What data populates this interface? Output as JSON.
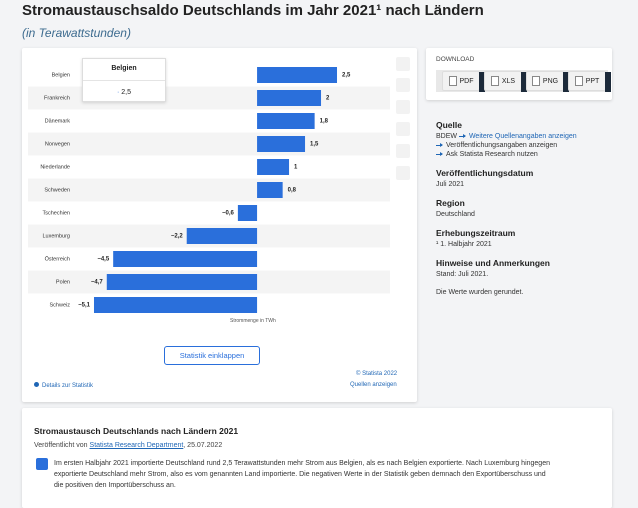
{
  "header": {
    "title": "Stromaustauschsaldo Deutschlands im Jahr 2021¹ nach Ländern",
    "subtitle": "(in Terawattstunden)"
  },
  "chart_data": {
    "type": "hbar",
    "categories": [
      "Belgien",
      "Frankreich",
      "Dänemark",
      "Norwegen",
      "Niederlande",
      "Schweden",
      "Tschechien",
      "Luxemburg",
      "Österreich",
      "Polen",
      "Schweiz"
    ],
    "values": [
      2.5,
      2,
      1.8,
      1.5,
      1,
      0.8,
      -0.6,
      -2.2,
      -4.5,
      -4.7,
      -5.1
    ],
    "value_labels": [
      "2,5",
      "2",
      "1,8",
      "1,5",
      "1",
      "0,8",
      "−0,6",
      "−2,2",
      "−4,5",
      "−4,7",
      "−5,1"
    ],
    "color": "#2a6fdb",
    "xlim": [
      -5.6,
      3
    ],
    "x_label": "Strommenge in TWh",
    "tooltip": {
      "title": "Belgien",
      "value": "2,5"
    }
  },
  "chart_footer": {
    "collapse": "Statistik einklappen",
    "copyright": "© Statista 2022",
    "details": "Details zur Statistik",
    "sources": "Quellen anzeigen"
  },
  "download": {
    "title": "DOWNLOAD",
    "formats": [
      "PDF",
      "XLS",
      "PNG",
      "PPT"
    ]
  },
  "info": {
    "source_title": "Quelle",
    "source": "BDEW",
    "links": [
      "Weitere Quellenangaben anzeigen",
      "Veröffentlichungsangaben anzeigen",
      "Ask Statista Research nutzen"
    ],
    "sections": [
      {
        "title": "Veröffentlichungsdatum",
        "text": "Juli 2021"
      },
      {
        "title": "Region",
        "text": "Deutschland"
      },
      {
        "title": "Erhebungszeitraum",
        "text": "¹ 1. Halbjahr 2021"
      },
      {
        "title": "Hinweise und Anmerkungen",
        "text": "Stand: Juli 2021."
      }
    ],
    "note": "Die Werte wurden gerundet."
  },
  "description": {
    "title": "Stromaustausch Deutschlands nach Ländern 2021",
    "published_by": "Veröffentlicht von",
    "author": "Statista Research Department",
    "date": ", 25.07.2022",
    "text": "Im ersten Halbjahr 2021 importierte Deutschland rund 2,5 Terawattstunden mehr Strom aus Belgien, als es nach Belgien exportierte. Nach Luxemburg hingegen exportierte Deutschland mehr Strom, also es vom genannten Land importierte. Die negativen Werte in der Statistik geben demnach den Exportüberschuss und die positiven den Importüberschuss an."
  }
}
